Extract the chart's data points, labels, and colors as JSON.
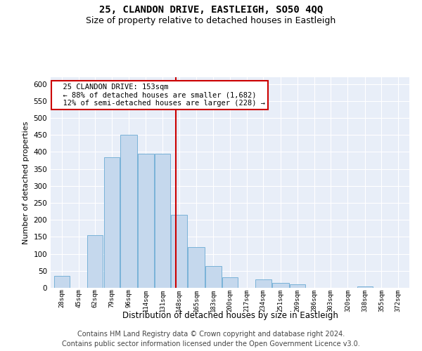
{
  "title1": "25, CLANDON DRIVE, EASTLEIGH, SO50 4QQ",
  "title2": "Size of property relative to detached houses in Eastleigh",
  "xlabel": "Distribution of detached houses by size in Eastleigh",
  "ylabel": "Number of detached properties",
  "footer1": "Contains HM Land Registry data © Crown copyright and database right 2024.",
  "footer2": "Contains public sector information licensed under the Open Government Licence v3.0.",
  "annotation_line1": "25 CLANDON DRIVE: 153sqm",
  "annotation_line2": "← 88% of detached houses are smaller (1,682)",
  "annotation_line3": "12% of semi-detached houses are larger (228) →",
  "property_size": 153,
  "bar_labels": [
    "28sqm",
    "45sqm",
    "62sqm",
    "79sqm",
    "96sqm",
    "114sqm",
    "131sqm",
    "148sqm",
    "165sqm",
    "183sqm",
    "200sqm",
    "217sqm",
    "234sqm",
    "251sqm",
    "269sqm",
    "286sqm",
    "303sqm",
    "320sqm",
    "338sqm",
    "355sqm",
    "372sqm"
  ],
  "bar_values": [
    35,
    0,
    155,
    385,
    450,
    395,
    395,
    215,
    120,
    65,
    30,
    0,
    25,
    15,
    10,
    0,
    0,
    0,
    5,
    0,
    0
  ],
  "bar_edges": [
    28,
    45,
    62,
    79,
    96,
    114,
    131,
    148,
    165,
    183,
    200,
    217,
    234,
    251,
    269,
    286,
    303,
    320,
    338,
    355,
    372,
    389
  ],
  "bar_color": "#c5d8ed",
  "bar_edge_color": "#6aaad4",
  "vline_color": "#cc0000",
  "vline_x": 153,
  "ylim": [
    0,
    620
  ],
  "yticks": [
    0,
    50,
    100,
    150,
    200,
    250,
    300,
    350,
    400,
    450,
    500,
    550,
    600
  ],
  "bg_color": "#e8eef8",
  "box_color": "#cc0000",
  "title1_fontsize": 10,
  "title2_fontsize": 9,
  "footer_fontsize": 7
}
